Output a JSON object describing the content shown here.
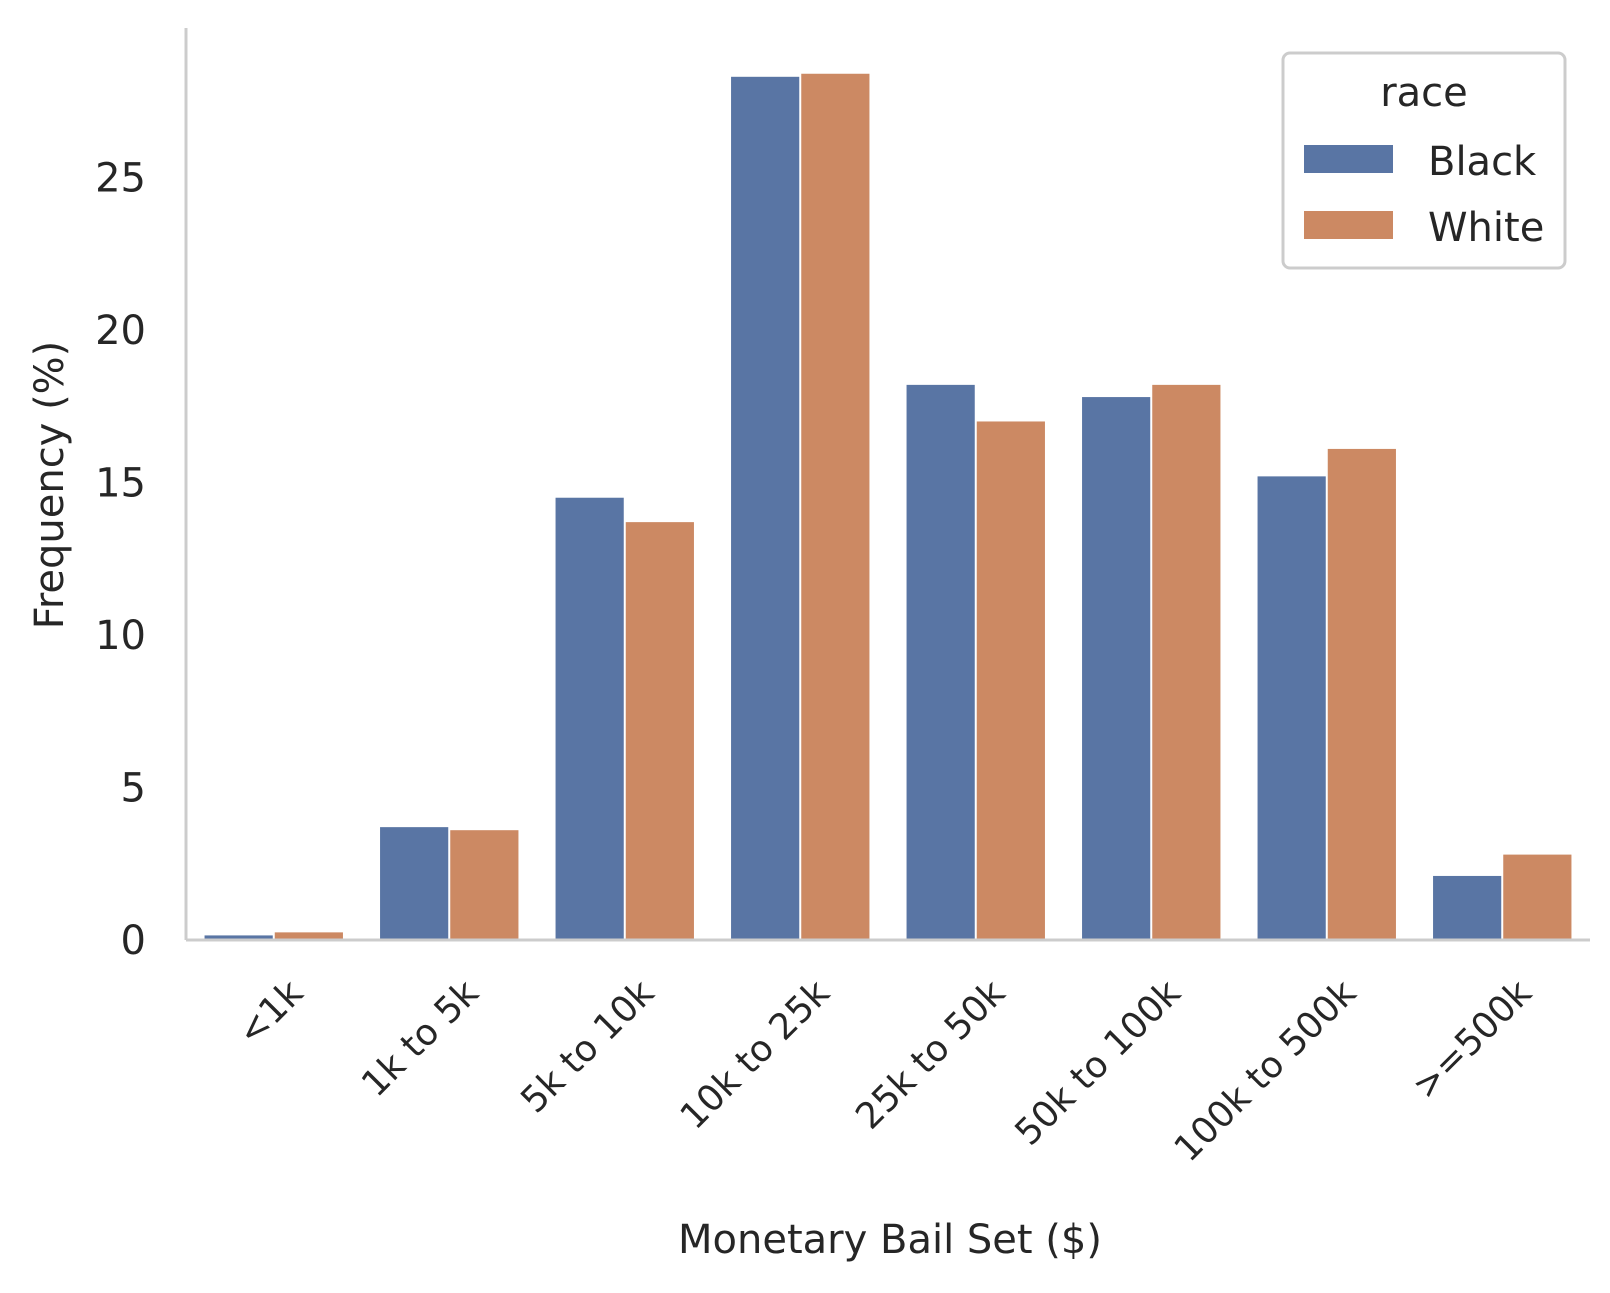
{
  "chart_data": {
    "type": "bar",
    "title": "",
    "xlabel": "Monetary Bail Set ($)",
    "ylabel": "Frequency (%)",
    "categories": [
      "<1k",
      "1k to 5k",
      "5k to 10k",
      "10k to 25k",
      "25k to 50k",
      "50k to 100k",
      "100k to 500k",
      ">=500k"
    ],
    "series": [
      {
        "name": "Black",
        "values": [
          0.15,
          3.7,
          14.5,
          28.3,
          18.2,
          17.8,
          15.2,
          2.1
        ]
      },
      {
        "name": "White",
        "values": [
          0.25,
          3.6,
          13.7,
          28.4,
          17.0,
          18.2,
          16.1,
          2.8
        ]
      }
    ],
    "ylim": [
      0,
      29.9
    ],
    "yticks": [
      0,
      5,
      10,
      15,
      20,
      25
    ],
    "grid": false,
    "legend": {
      "title": "race",
      "position": "top-right"
    },
    "colors": {
      "Black": "#5975a4",
      "White": "#cc8963",
      "axis": "#cccccc",
      "text": "#262626"
    }
  }
}
